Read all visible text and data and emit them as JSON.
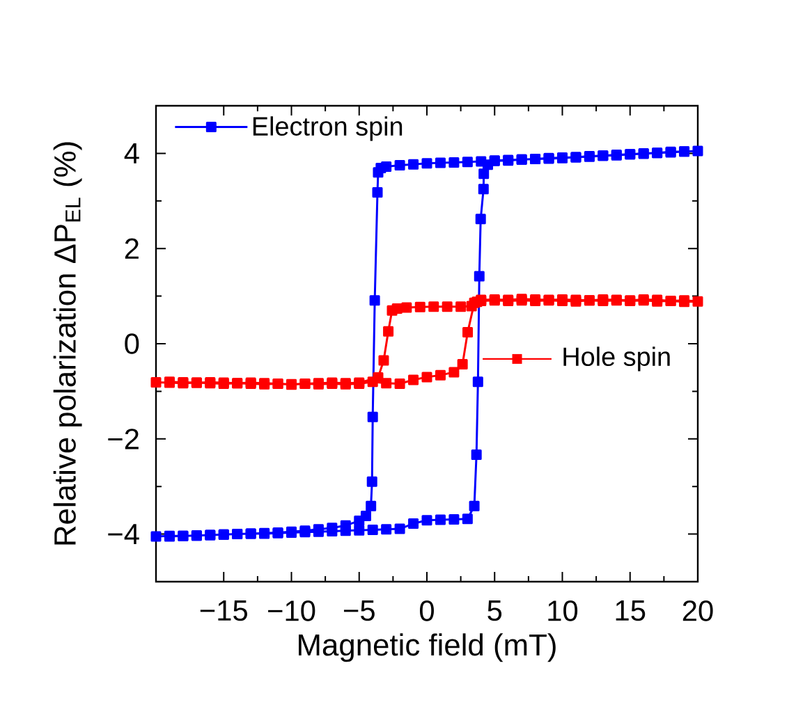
{
  "chart_data": {
    "type": "line",
    "xlabel": "Magnetic field (mT)",
    "ylabel": "Relative polarization ΔP$_{EL}$ (%)",
    "xlim": [
      -20,
      20
    ],
    "ylim": [
      -5,
      5
    ],
    "xticks": [
      {
        "value": -15,
        "label": "−15"
      },
      {
        "value": -10,
        "label": "−10"
      },
      {
        "value": -5,
        "label": "−5"
      },
      0,
      5,
      10,
      15,
      20
    ],
    "yticks": [
      {
        "value": -4,
        "label": "−4"
      },
      {
        "value": -2,
        "label": "−2"
      },
      0,
      2,
      4
    ],
    "legend": "top left",
    "marker": "square",
    "line_style": "solid",
    "series": [
      {
        "name": "Electron spin",
        "color": "#0000ff",
        "x": [
          -20,
          -19,
          -18,
          -17,
          -16,
          -15,
          -14,
          -13,
          -12,
          -11,
          -10,
          -9,
          -8,
          -7,
          -6,
          -5,
          -4,
          -3,
          -2,
          -1,
          0,
          1,
          2,
          3,
          3.5,
          3.66,
          3.77,
          3.87,
          3.97,
          4.18,
          4.2,
          4.5,
          5,
          6,
          7,
          8,
          9,
          10,
          11,
          12,
          13,
          14,
          15,
          16,
          17,
          18,
          19,
          20,
          19,
          18,
          17,
          16,
          15,
          14,
          13,
          12,
          11,
          10,
          9,
          8,
          7,
          6,
          5,
          4,
          3,
          2,
          1,
          0,
          -1,
          -2,
          -3,
          -3.4,
          -3.6,
          -3.65,
          -3.85,
          -4.0,
          -4.05,
          -4.13,
          -4.5,
          -5,
          -6,
          -7,
          -8,
          -9,
          -10,
          -11,
          -12,
          -13,
          -14,
          -15,
          -16,
          -17,
          -18,
          -19
        ],
        "values": [
          -4.05,
          -4.04,
          -4.04,
          -4.03,
          -4.02,
          -4.01,
          -4.0,
          -3.99,
          -3.99,
          -3.98,
          -3.97,
          -3.96,
          -3.95,
          -3.94,
          -3.93,
          -3.92,
          -3.91,
          -3.9,
          -3.89,
          -3.78,
          -3.71,
          -3.7,
          -3.69,
          -3.68,
          -3.41,
          -2.33,
          -0.8,
          1.42,
          2.62,
          3.25,
          3.57,
          3.76,
          3.84,
          3.85,
          3.87,
          3.88,
          3.89,
          3.9,
          3.92,
          3.93,
          3.95,
          3.96,
          3.98,
          3.99,
          4.01,
          4.02,
          4.04,
          4.05,
          4.04,
          4.03,
          4.01,
          4.0,
          3.98,
          3.97,
          3.95,
          3.94,
          3.92,
          3.91,
          3.9,
          3.88,
          3.87,
          3.86,
          3.85,
          3.83,
          3.82,
          3.81,
          3.8,
          3.79,
          3.77,
          3.75,
          3.72,
          3.69,
          3.6,
          3.18,
          0.91,
          -1.54,
          -2.9,
          -3.41,
          -3.62,
          -3.72,
          -3.82,
          -3.87,
          -3.9,
          -3.93,
          -3.95,
          -3.97,
          -3.98,
          -3.99,
          -4.0,
          -4.01,
          -4.02,
          -4.03,
          -4.04,
          -4.05
        ]
      },
      {
        "name": "Hole spin",
        "color": "#ff0000",
        "x": [
          -20,
          -19,
          -18,
          -17,
          -16,
          -15,
          -14,
          -13,
          -12,
          -11,
          -10,
          -9,
          -8,
          -7,
          -6,
          -5,
          -4,
          -3,
          -2,
          -1,
          0,
          1,
          2,
          2.63,
          3.01,
          3.5,
          4,
          5,
          6,
          7,
          8,
          9,
          10,
          11,
          12,
          13,
          14,
          15,
          16,
          17,
          18,
          19,
          20,
          19,
          18,
          17,
          16,
          15,
          14,
          13,
          12,
          11,
          10,
          9,
          8,
          7,
          6,
          5,
          4,
          3.7,
          3.3,
          2.5,
          1.5,
          0.5,
          -0.5,
          -1.5,
          -2.2,
          -2.57,
          -2.85,
          -3.19,
          -3.6,
          -5,
          -6,
          -7,
          -8,
          -9,
          -10,
          -11,
          -12,
          -13,
          -14,
          -15,
          -16,
          -17,
          -18,
          -19
        ],
        "values": [
          -0.81,
          -0.82,
          -0.83,
          -0.82,
          -0.83,
          -0.84,
          -0.83,
          -0.84,
          -0.85,
          -0.84,
          -0.86,
          -0.84,
          -0.85,
          -0.84,
          -0.85,
          -0.84,
          -0.8,
          -0.83,
          -0.84,
          -0.76,
          -0.7,
          -0.66,
          -0.6,
          -0.43,
          0.24,
          0.86,
          0.92,
          0.93,
          0.92,
          0.94,
          0.93,
          0.92,
          0.93,
          0.92,
          0.91,
          0.93,
          0.92,
          0.91,
          0.93,
          0.92,
          0.9,
          0.91,
          0.89,
          0.88,
          0.9,
          0.89,
          0.91,
          0.9,
          0.91,
          0.9,
          0.91,
          0.89,
          0.9,
          0.91,
          0.9,
          0.91,
          0.9,
          0.91,
          0.9,
          0.88,
          0.79,
          0.78,
          0.78,
          0.78,
          0.77,
          0.76,
          0.74,
          0.7,
          0.26,
          -0.35,
          -0.71,
          -0.82,
          -0.83,
          -0.82,
          -0.83,
          -0.84,
          -0.85,
          -0.84,
          -0.83,
          -0.82,
          -0.83,
          -0.82,
          -0.81,
          -0.82,
          -0.81,
          -0.8
        ]
      }
    ]
  }
}
